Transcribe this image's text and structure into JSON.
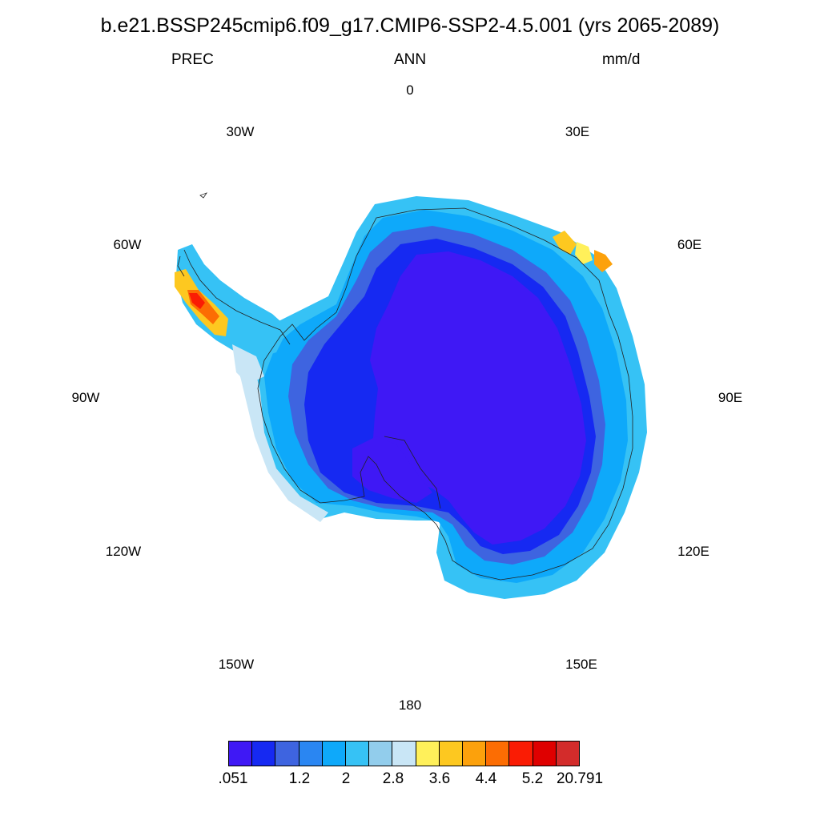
{
  "title": "b.e21.BSSP245cmip6.f09_g17.CMIP6-SSP2-4.5.001 (yrs 2065-2089)",
  "subtitle_left": "PREC",
  "subtitle_center": "ANN",
  "subtitle_right": "mm/d",
  "longitude_labels": {
    "lon_0": "0",
    "lon_30e": "30E",
    "lon_60e": "60E",
    "lon_90e": "90E",
    "lon_120e": "120E",
    "lon_150e": "150E",
    "lon_180": "180",
    "lon_150w": "150W",
    "lon_120w": "120W",
    "lon_90w": "90W",
    "lon_60w": "60W",
    "lon_30w": "30W"
  },
  "colorbar": {
    "colors": [
      "#3f18f5",
      "#1629f2",
      "#3e64e0",
      "#2a86f2",
      "#0ea9fa",
      "#36c2f5",
      "#92cdec",
      "#c9e6f6",
      "#fff05a",
      "#fdc820",
      "#fca10c",
      "#fc6d03",
      "#fa1c04",
      "#df0000",
      "#d32c2b"
    ],
    "labels": [
      ".051",
      "1.2",
      "2",
      "2.8",
      "3.6",
      "4.4",
      "5.2",
      "20.791"
    ]
  }
}
